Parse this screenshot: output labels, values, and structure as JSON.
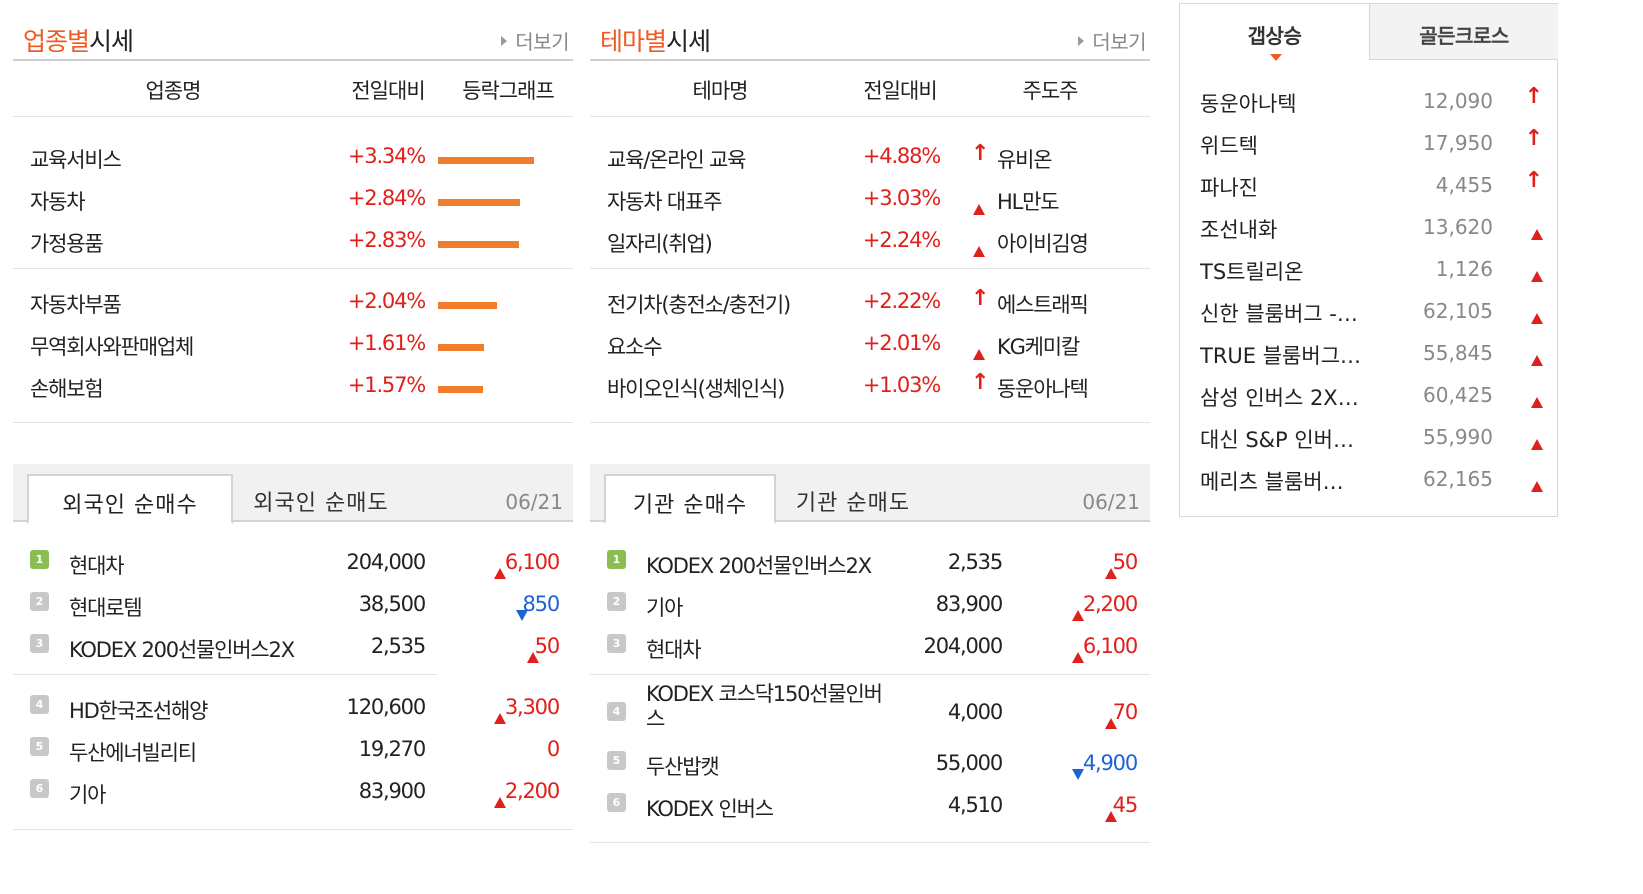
{
  "sector": {
    "title_orange": "업종별",
    "title_black": "시세",
    "more": "더보기",
    "headers": [
      "업종명",
      "전일대비",
      "등락그래프"
    ],
    "rows": [
      {
        "name": "교육서비스",
        "change": "+3.34%",
        "pct": 3.34
      },
      {
        "name": "자동차",
        "change": "+2.84%",
        "pct": 2.84
      },
      {
        "name": "가정용품",
        "change": "+2.83%",
        "pct": 2.83
      },
      {
        "name": "자동차부품",
        "change": "+2.04%",
        "pct": 2.04
      },
      {
        "name": "무역회사와판매업체",
        "change": "+1.61%",
        "pct": 1.61
      },
      {
        "name": "손해보험",
        "change": "+1.57%",
        "pct": 1.57
      }
    ]
  },
  "theme": {
    "title_orange": "테마별",
    "title_black": "시세",
    "more": "더보기",
    "headers": [
      "테마명",
      "전일대비",
      "주도주"
    ],
    "rows": [
      {
        "name": "교육/온라인 교육",
        "change": "+4.88%",
        "leader": "유비온",
        "icon": "up-arrow"
      },
      {
        "name": "자동차 대표주",
        "change": "+3.03%",
        "leader": "HL만도",
        "icon": "up-triangle"
      },
      {
        "name": "일자리(취업)",
        "change": "+2.24%",
        "leader": "아이비김영",
        "icon": "up-triangle"
      },
      {
        "name": "전기차(충전소/충전기)",
        "change": "+2.22%",
        "leader": "에스트래픽",
        "icon": "up-arrow"
      },
      {
        "name": "요소수",
        "change": "+2.01%",
        "leader": "KG케미칼",
        "icon": "up-triangle"
      },
      {
        "name": "바이오인식(생체인식)",
        "change": "+1.03%",
        "leader": "동운아나텍",
        "icon": "up-arrow"
      }
    ]
  },
  "foreign": {
    "tab_active": "외국인 순매수",
    "tab_inactive": "외국인 순매도",
    "date": "06/21",
    "rows": [
      {
        "rank": "1",
        "name": "현대차",
        "price": "204,000",
        "dir": "up",
        "diff": "6,100"
      },
      {
        "rank": "2",
        "name": "현대로템",
        "price": "38,500",
        "dir": "down",
        "diff": "850"
      },
      {
        "rank": "3",
        "name": "KODEX 200선물인버스2X",
        "price": "2,535",
        "dir": "up",
        "diff": "50"
      },
      {
        "rank": "4",
        "name": "HD한국조선해양",
        "price": "120,600",
        "dir": "up",
        "diff": "3,300"
      },
      {
        "rank": "5",
        "name": "두산에너빌리티",
        "price": "19,270",
        "dir": "none",
        "diff": "0"
      },
      {
        "rank": "6",
        "name": "기아",
        "price": "83,900",
        "dir": "up",
        "diff": "2,200"
      }
    ]
  },
  "institution": {
    "tab_active": "기관 순매수",
    "tab_inactive": "기관 순매도",
    "date": "06/21",
    "rows": [
      {
        "rank": "1",
        "name": "KODEX 200선물인버스2X",
        "price": "2,535",
        "dir": "up",
        "diff": "50"
      },
      {
        "rank": "2",
        "name": "기아",
        "price": "83,900",
        "dir": "up",
        "diff": "2,200"
      },
      {
        "rank": "3",
        "name": "현대차",
        "price": "204,000",
        "dir": "up",
        "diff": "6,100"
      },
      {
        "rank": "4",
        "name": "KODEX 코스닥150선물인버스",
        "name_line1": "KODEX 코스닥150선물인버",
        "name_line2": "스",
        "price": "4,000",
        "dir": "up",
        "diff": "70"
      },
      {
        "rank": "5",
        "name": "두산밥캣",
        "price": "55,000",
        "dir": "down",
        "diff": "4,900"
      },
      {
        "rank": "6",
        "name": "KODEX 인버스",
        "price": "4,510",
        "dir": "up",
        "diff": "45"
      }
    ]
  },
  "gap": {
    "tab_active": "갭상승",
    "tab_inactive": "골든크로스",
    "rows": [
      {
        "name": "동운아나텍",
        "price": "12,090",
        "icon": "up-arrow"
      },
      {
        "name": "위드텍",
        "price": "17,950",
        "icon": "up-arrow"
      },
      {
        "name": "파나진",
        "price": "4,455",
        "icon": "up-arrow"
      },
      {
        "name": "조선내화",
        "price": "13,620",
        "icon": "up-triangle"
      },
      {
        "name": "TS트릴리온",
        "price": "1,126",
        "icon": "up-triangle"
      },
      {
        "name": "신한 블룸버그 -…",
        "price": "62,105",
        "icon": "up-triangle"
      },
      {
        "name": "TRUE 블룸버그…",
        "price": "55,845",
        "icon": "up-triangle"
      },
      {
        "name": "삼성 인버스 2X…",
        "price": "60,425",
        "icon": "up-triangle"
      },
      {
        "name": "대신 S&P 인버…",
        "price": "55,990",
        "icon": "up-triangle"
      },
      {
        "name": "메리츠 블룸버…",
        "price": "62,165",
        "icon": "up-triangle"
      }
    ]
  },
  "colors": {
    "accent": "#f05a24",
    "up": "#e0201a",
    "down": "#1e62d6",
    "bar": "#f07d2b"
  }
}
